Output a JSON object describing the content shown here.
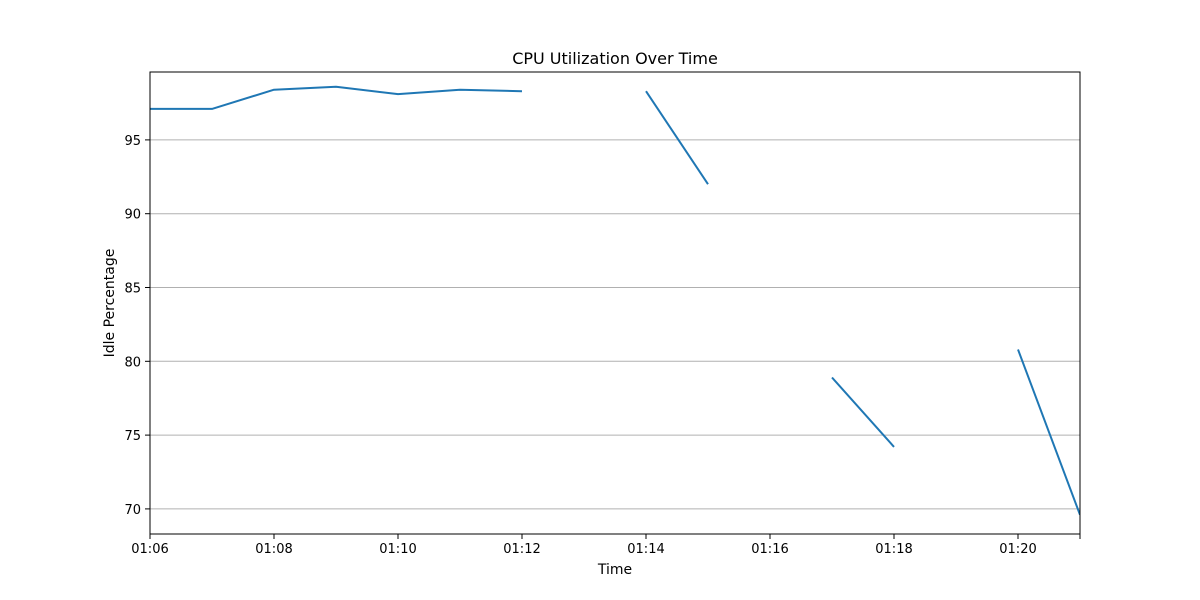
{
  "chart_data": {
    "type": "line",
    "title": "CPU Utilization Over Time",
    "xlabel": "Time",
    "ylabel": "Idle Percentage",
    "xlim": [
      "01:06",
      "01:21"
    ],
    "ylim": [
      68.3,
      99.6
    ],
    "x_ticks": [
      "01:06",
      "01:08",
      "01:10",
      "01:12",
      "01:14",
      "01:16",
      "01:18",
      "01:20"
    ],
    "y_ticks": [
      70,
      75,
      80,
      85,
      90,
      95
    ],
    "grid": "y-axis only",
    "colors": {
      "line": "#1f77b4",
      "grid": "#b0b0b0",
      "axes": "#000000"
    },
    "series": [
      {
        "x": [
          "01:06",
          "01:07",
          "01:08",
          "01:09",
          "01:10",
          "01:11",
          "01:12",
          "01:13",
          "01:14",
          "01:15",
          "01:16",
          "01:17",
          "01:18",
          "01:19",
          "01:20",
          "01:21"
        ],
        "y": [
          97.1,
          97.1,
          98.4,
          98.6,
          98.1,
          98.4,
          98.3,
          null,
          98.3,
          92.0,
          null,
          78.9,
          74.2,
          null,
          80.8,
          69.6
        ]
      }
    ]
  }
}
